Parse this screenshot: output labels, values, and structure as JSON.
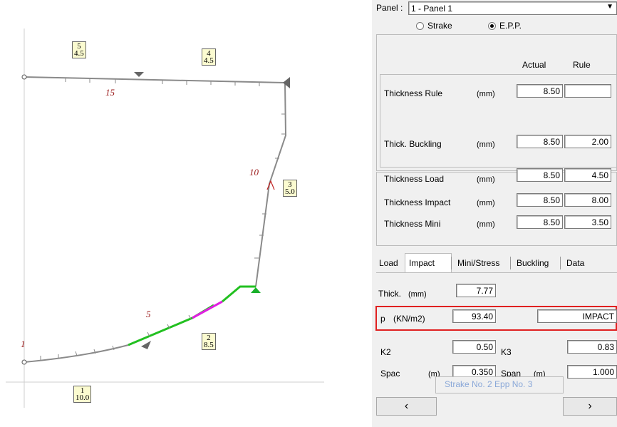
{
  "drawing": {
    "section_boxes": [
      {
        "id": "5",
        "value": "4.5"
      },
      {
        "id": "4",
        "value": "4.5"
      },
      {
        "id": "3",
        "value": "5.0"
      },
      {
        "id": "2",
        "value": "8.5"
      },
      {
        "id": "1",
        "value": "10.0"
      }
    ],
    "point_numbers": [
      "15",
      "10",
      "5",
      "1"
    ],
    "colors": {
      "line": "#8a8a8a",
      "highlight_green": "#22c020",
      "highlight_magenta": "#e020e0",
      "marker_grey": "#666666",
      "marker_green": "#19b02a",
      "label_red": "#9a1818",
      "label_box": "#fbfbd0"
    }
  },
  "panel": {
    "panel_label": "Panel :",
    "panel_select_value": "1 - Panel 1",
    "radio_strake": "Strake",
    "radio_epp": "E.P.P.",
    "header_actual": "Actual",
    "header_rule": "Rule",
    "rows": [
      {
        "label": "Thickness Rule",
        "unit": "(mm)",
        "actual": "8.50",
        "rule": ""
      },
      {
        "label": "Thick. Buckling",
        "unit": "(mm)",
        "actual": "8.50",
        "rule": "2.00"
      },
      {
        "label": "Thickness Load",
        "unit": "(mm)",
        "actual": "8.50",
        "rule": "4.50"
      },
      {
        "label": "Thickness Impact",
        "unit": "(mm)",
        "actual": "8.50",
        "rule": "8.00"
      },
      {
        "label": "Thickness Mini",
        "unit": "(mm)",
        "actual": "8.50",
        "rule": "3.50"
      }
    ],
    "tabs": [
      "Load",
      "Impact",
      "Mini/Stress",
      "Buckling",
      "Data"
    ],
    "impact": {
      "thick_label": "Thick.",
      "thick_unit": "(mm)",
      "thick_value": "7.77",
      "p_label": "p",
      "p_unit": "(KN/m2)",
      "p_value": "93.40",
      "p_type": "IMPACT",
      "k2_label": "K2",
      "k2_value": "0.50",
      "k3_label": "K3",
      "k3_value": "0.83",
      "spac_label": "Spac",
      "spac_unit": "(m)",
      "spac_value": "0.350",
      "span_label": "Span",
      "span_unit": "(m)",
      "span_value": "1.000"
    },
    "nav": {
      "prev": "‹",
      "status": "Strake No. 2 Epp No. 3",
      "next": "›"
    },
    "colors": {
      "highlight_border": "#e02020",
      "status_text": "#8aa8d8"
    }
  }
}
